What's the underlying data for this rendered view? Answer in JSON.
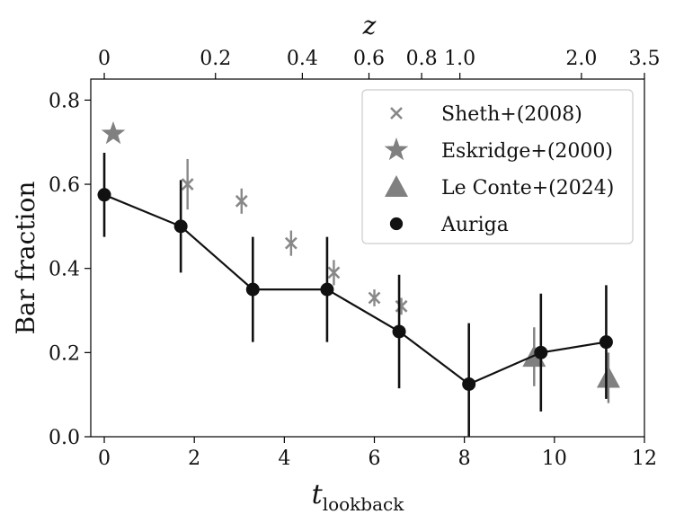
{
  "chart_data": {
    "type": "scatter",
    "title": "",
    "xlabel": "t",
    "xlabel_sub": "lookback",
    "ylabel": "Bar fraction",
    "top_axis_label": "z",
    "xlim": [
      -0.3,
      12
    ],
    "ylim": [
      0,
      0.85
    ],
    "xticks": [
      0,
      2,
      4,
      6,
      8,
      10,
      12
    ],
    "yticks": [
      0.0,
      0.2,
      0.4,
      0.6,
      0.8
    ],
    "xtick_labels": [
      "0",
      "2",
      "4",
      "6",
      "8",
      "10",
      "12"
    ],
    "ytick_labels": [
      "0.0",
      "0.2",
      "0.4",
      "0.6",
      "0.8"
    ],
    "top_ticks": [
      {
        "t": 0.0,
        "label": "0"
      },
      {
        "t": 2.47,
        "label": "0.2"
      },
      {
        "t": 4.4,
        "label": "0.4"
      },
      {
        "t": 5.88,
        "label": "0.6"
      },
      {
        "t": 7.05,
        "label": "0.8"
      },
      {
        "t": 7.9,
        "label": "1.0"
      },
      {
        "t": 10.6,
        "label": "2.0"
      },
      {
        "t": 12.0,
        "label": "3.5"
      }
    ],
    "legend_position": "top-right",
    "series": [
      {
        "name": "Sheth+(2008)",
        "marker": "x",
        "color": "#888888",
        "points": [
          {
            "x": 1.85,
            "y": 0.6,
            "err": 0.06
          },
          {
            "x": 3.05,
            "y": 0.56,
            "err": 0.03
          },
          {
            "x": 4.15,
            "y": 0.46,
            "err": 0.03
          },
          {
            "x": 5.1,
            "y": 0.39,
            "err": 0.03
          },
          {
            "x": 6.0,
            "y": 0.33,
            "err": 0.02
          },
          {
            "x": 6.6,
            "y": 0.31,
            "err": 0.02
          }
        ]
      },
      {
        "name": "Eskridge+(2000)",
        "marker": "star",
        "color": "#808080",
        "points": [
          {
            "x": 0.2,
            "y": 0.72,
            "err": 0
          }
        ]
      },
      {
        "name": "Le Conte+(2024)",
        "marker": "triangle",
        "color": "#808080",
        "points": [
          {
            "x": 9.55,
            "y": 0.19,
            "err": 0.07
          },
          {
            "x": 11.2,
            "y": 0.14,
            "err": 0.06
          }
        ]
      },
      {
        "name": "Auriga",
        "marker": "circle",
        "color": "#111111",
        "line": true,
        "points": [
          {
            "x": 0.0,
            "y": 0.575,
            "err": 0.1
          },
          {
            "x": 1.7,
            "y": 0.5,
            "err": 0.11
          },
          {
            "x": 3.3,
            "y": 0.35,
            "err": 0.125
          },
          {
            "x": 4.95,
            "y": 0.35,
            "err": 0.125
          },
          {
            "x": 6.55,
            "y": 0.25,
            "err": 0.135
          },
          {
            "x": 8.1,
            "y": 0.125,
            "err": 0.145
          },
          {
            "x": 9.7,
            "y": 0.2,
            "err": 0.14
          },
          {
            "x": 11.15,
            "y": 0.225,
            "err": 0.135
          }
        ]
      }
    ]
  }
}
